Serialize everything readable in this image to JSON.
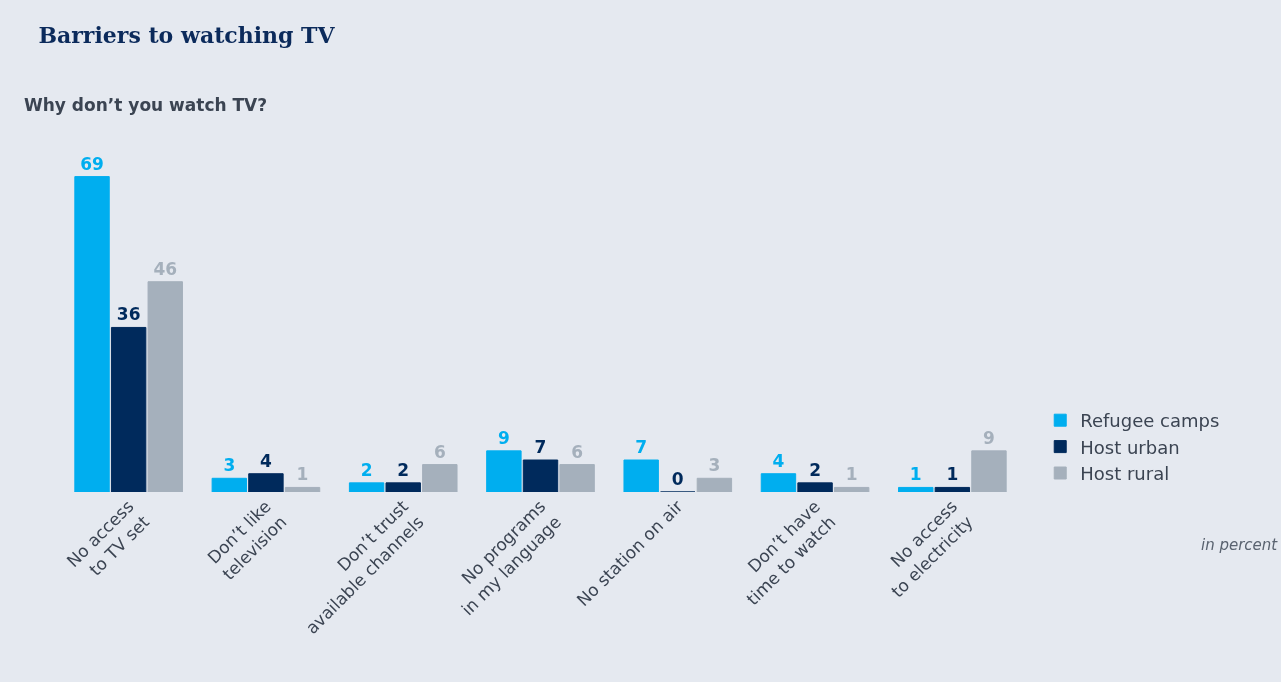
{
  "chart_data": {
    "type": "bar",
    "title": "Barriers to watching TV",
    "subtitle": "Why don’t you watch TV?",
    "categories": [
      "No access\nto TV set",
      "Don’t like\ntelevision",
      "Don’t trust\navailable channels",
      "No programs\nin my language",
      "No station on air",
      "Don’t have\ntime to watch",
      "No access\nto electricity"
    ],
    "series": [
      {
        "name": "Refugee camps",
        "color": "#00aeef",
        "values": [
          69,
          3,
          2,
          9,
          7,
          4,
          1
        ]
      },
      {
        "name": "Host urban",
        "color": "#002a5c",
        "values": [
          36,
          4,
          2,
          7,
          0,
          2,
          1
        ]
      },
      {
        "name": "Host rural",
        "color": "#a5b0bc",
        "values": [
          46,
          1,
          6,
          6,
          3,
          1,
          9
        ]
      }
    ],
    "data_labels": true,
    "legend": "right",
    "grid": false,
    "annotations": [
      "in percent"
    ]
  }
}
